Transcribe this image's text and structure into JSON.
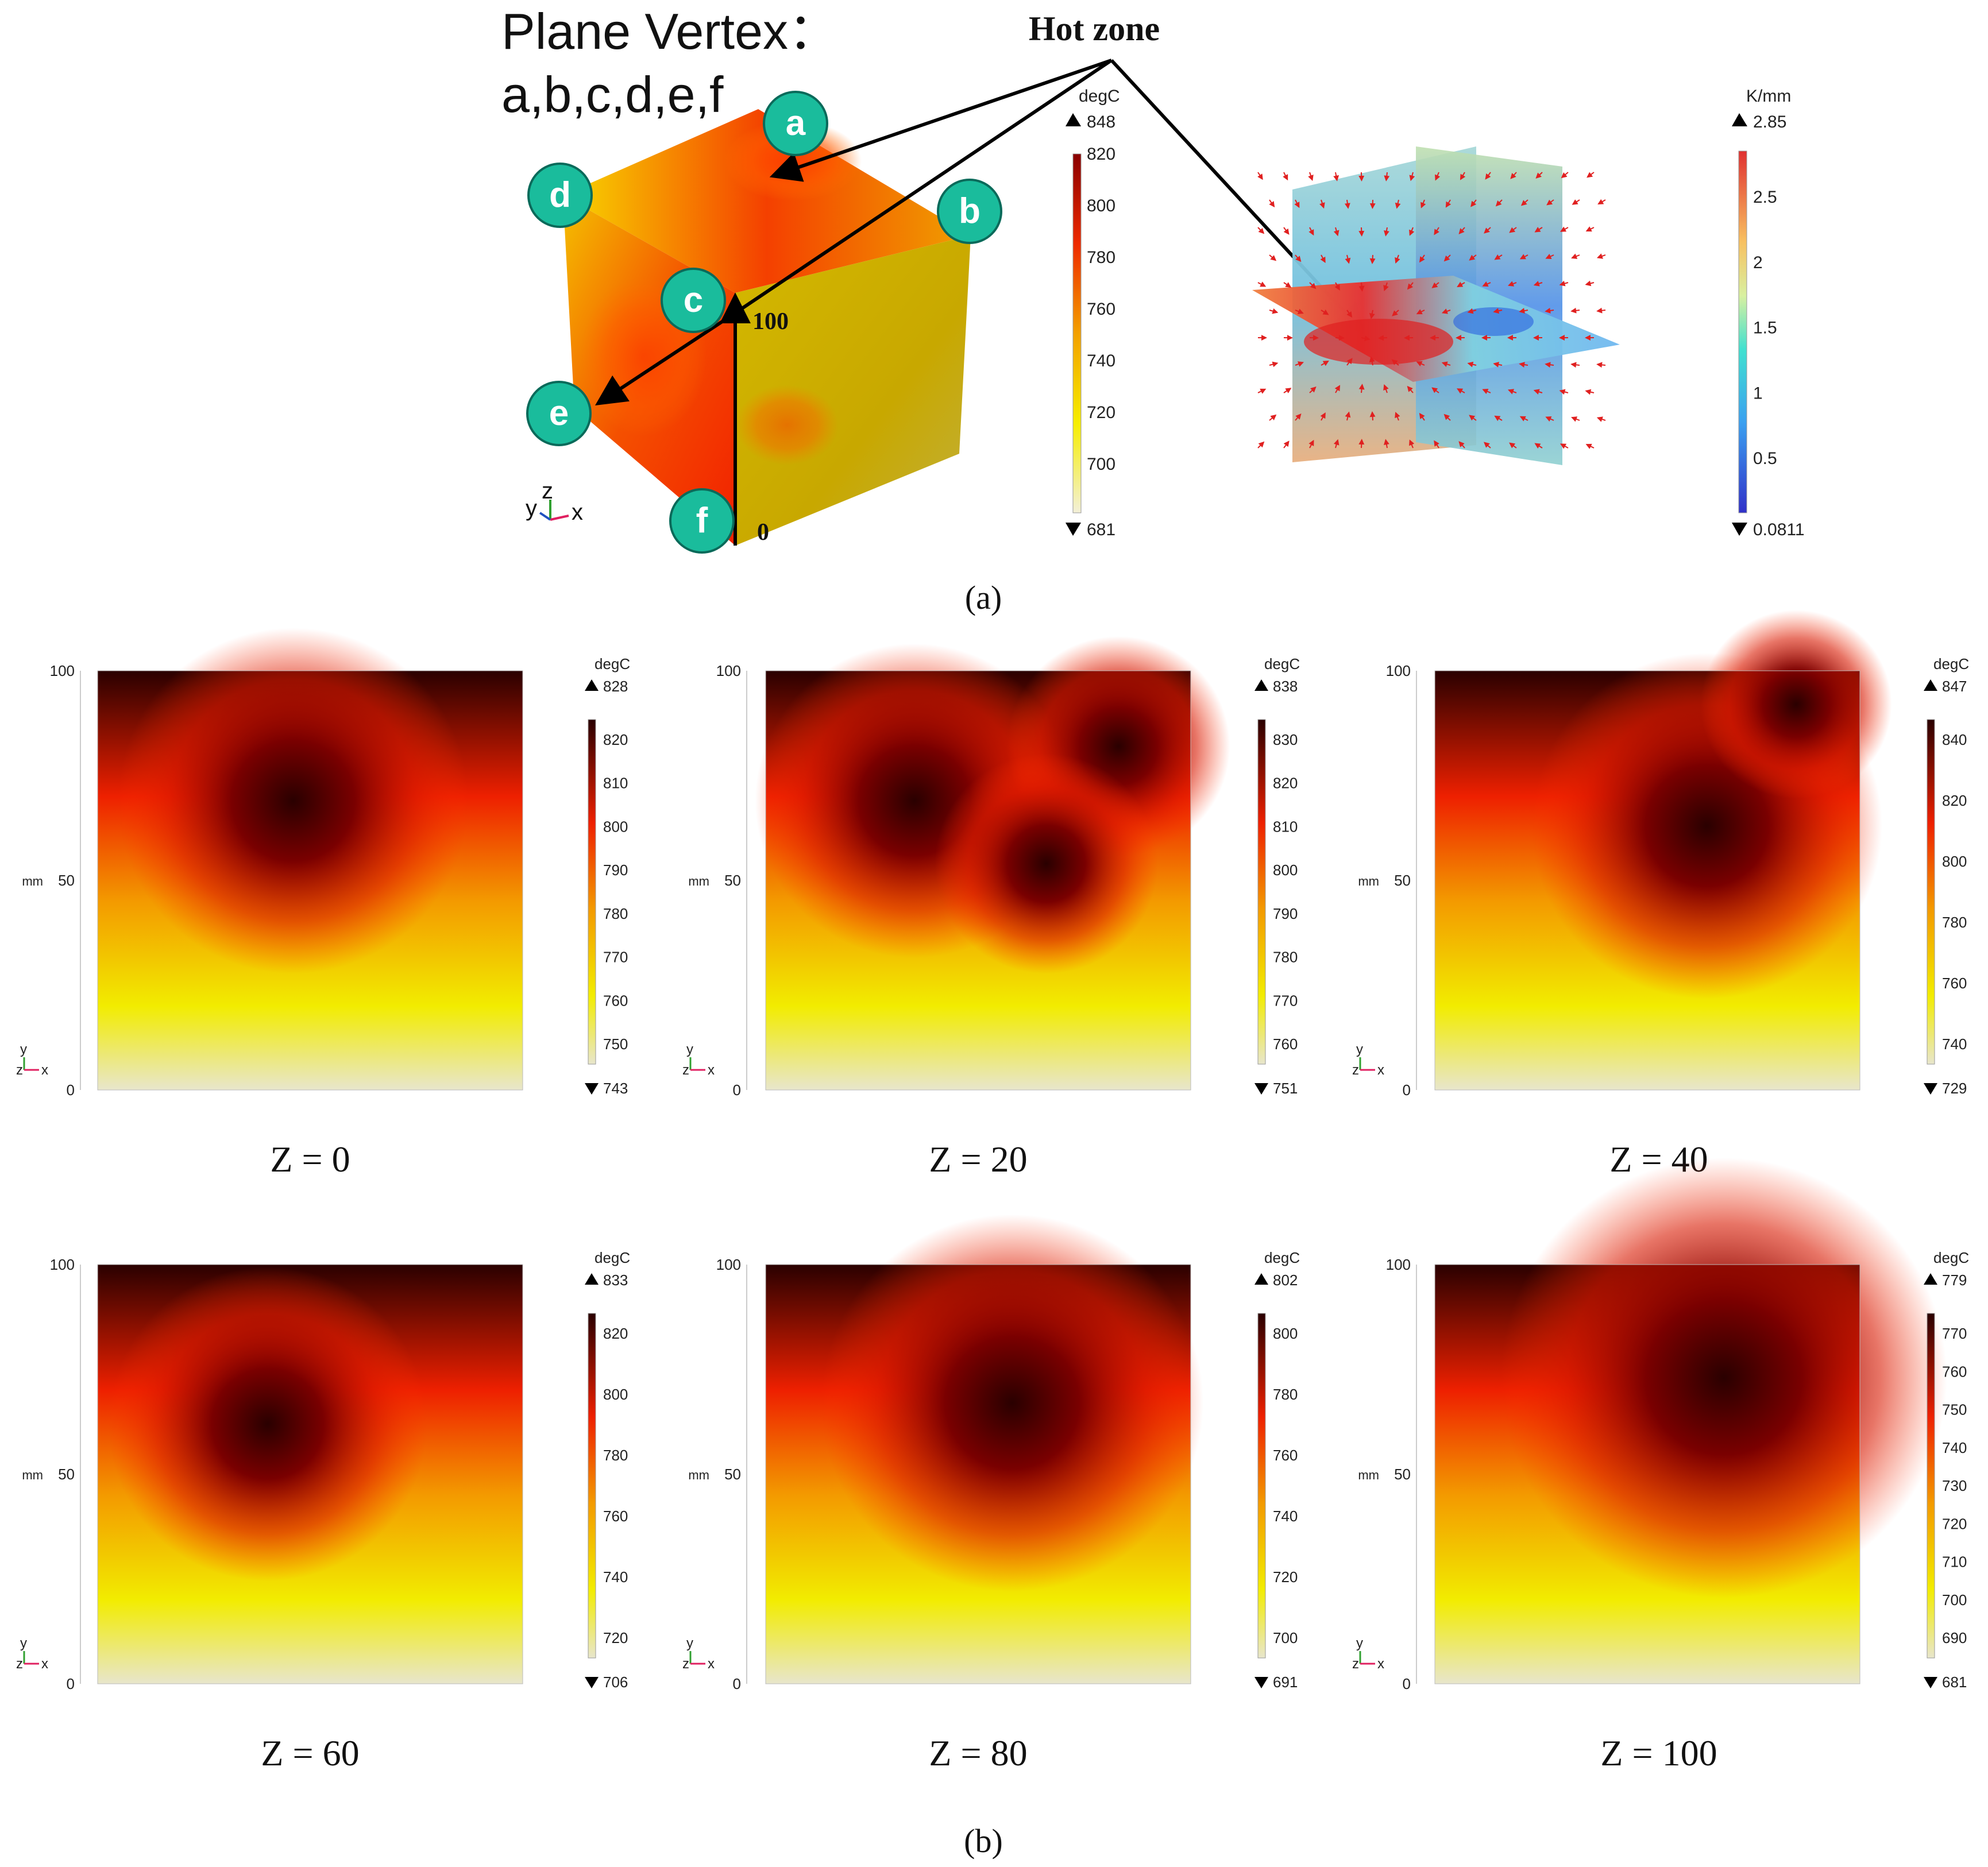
{
  "part_a": {
    "title_line1": "Plane Vertex：",
    "title_line2": "a,b,c,d,e,f",
    "hot_zone": "Hot zone",
    "vertices": [
      "a",
      "b",
      "c",
      "d",
      "e",
      "f"
    ],
    "edge_top": "100",
    "edge_bottom": "0",
    "axes": {
      "y": "y",
      "z": "z",
      "x": "x"
    },
    "temp_colorbar": {
      "unit": "degC",
      "max": "848",
      "min": "681",
      "ticks": [
        "820",
        "800",
        "780",
        "760",
        "740",
        "720",
        "700"
      ]
    },
    "grad_colorbar": {
      "unit": "K/mm",
      "max": "2.85",
      "min": "0.0811",
      "ticks": [
        "2.5",
        "2",
        "1.5",
        "1",
        "0.5"
      ]
    },
    "caption": "(a)"
  },
  "part_b": {
    "caption": "(b)",
    "panels": [
      {
        "z_label": "Z = 0",
        "unit": "degC",
        "max": "828",
        "min": "743",
        "ticks": [
          "820",
          "810",
          "800",
          "790",
          "780",
          "770",
          "760",
          "750"
        ]
      },
      {
        "z_label": "Z = 20",
        "unit": "degC",
        "max": "838",
        "min": "751",
        "ticks": [
          "830",
          "820",
          "810",
          "800",
          "790",
          "780",
          "770",
          "760"
        ]
      },
      {
        "z_label": "Z = 40",
        "unit": "degC",
        "max": "847",
        "min": "729",
        "ticks": [
          "840",
          "820",
          "800",
          "780",
          "760",
          "740"
        ]
      },
      {
        "z_label": "Z = 60",
        "unit": "degC",
        "max": "833",
        "min": "706",
        "ticks": [
          "820",
          "800",
          "780",
          "760",
          "740",
          "720"
        ]
      },
      {
        "z_label": "Z = 80",
        "unit": "degC",
        "max": "802",
        "min": "691",
        "ticks": [
          "800",
          "780",
          "760",
          "740",
          "720",
          "700"
        ]
      },
      {
        "z_label": "Z = 100",
        "unit": "degC",
        "max": "779",
        "min": "681",
        "ticks": [
          "770",
          "760",
          "750",
          "740",
          "730",
          "720",
          "710",
          "700",
          "690"
        ]
      }
    ],
    "axis": {
      "unit": "mm",
      "y_ticks": [
        "100",
        "50",
        "0"
      ],
      "y": "y",
      "z": "z",
      "x": "x"
    }
  },
  "colors": {
    "vertex_marker": "#1abc9c",
    "hot": "#2a0000",
    "warm": "#ff3a00",
    "cool": "#f2ee00",
    "cold": "#e6e3c8"
  }
}
